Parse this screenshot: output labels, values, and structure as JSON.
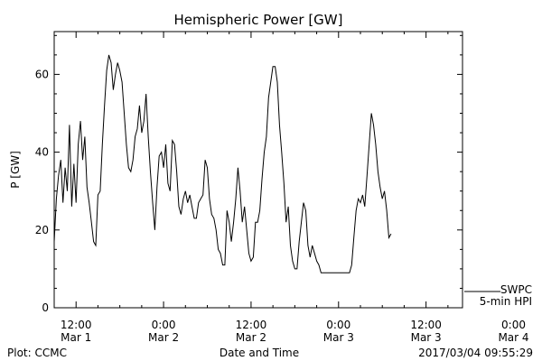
{
  "chart_data": {
    "type": "line",
    "title": "Hemispheric Power [GW]",
    "xlabel": "Date and Time",
    "ylabel": "P [GW]",
    "ylim": [
      0,
      71
    ],
    "yticks": [
      0,
      20,
      40,
      60
    ],
    "xlim_hours": [
      -15,
      41
    ],
    "x_tick_labels": [
      {
        "hours": -12,
        "time": "12:00",
        "date": "Mar 1"
      },
      {
        "hours": 0,
        "time": "0:00",
        "date": "Mar 2"
      },
      {
        "hours": 12,
        "time": "12:00",
        "date": "Mar 2"
      },
      {
        "hours": 24,
        "time": "0:00",
        "date": "Mar 3"
      },
      {
        "hours": 36,
        "time": "12:00",
        "date": "Mar 3"
      },
      {
        "hours": 48,
        "time": "0:00",
        "date": "Mar 4"
      }
    ],
    "series": [
      {
        "name": "5-min HPI",
        "points": [
          [
            -15.0,
            17
          ],
          [
            -14.7,
            28
          ],
          [
            -14.4,
            34
          ],
          [
            -14.1,
            38
          ],
          [
            -13.8,
            27
          ],
          [
            -13.5,
            36
          ],
          [
            -13.2,
            30
          ],
          [
            -12.9,
            47
          ],
          [
            -12.6,
            26
          ],
          [
            -12.3,
            37
          ],
          [
            -12.0,
            27
          ],
          [
            -11.7,
            42
          ],
          [
            -11.4,
            48
          ],
          [
            -11.1,
            38
          ],
          [
            -10.8,
            44
          ],
          [
            -10.5,
            31
          ],
          [
            -10.2,
            27
          ],
          [
            -9.9,
            22
          ],
          [
            -9.6,
            17
          ],
          [
            -9.3,
            16
          ],
          [
            -9.0,
            29
          ],
          [
            -8.7,
            30
          ],
          [
            -8.4,
            42
          ],
          [
            -8.1,
            52
          ],
          [
            -7.8,
            61
          ],
          [
            -7.5,
            65
          ],
          [
            -7.2,
            63
          ],
          [
            -6.9,
            56
          ],
          [
            -6.6,
            60
          ],
          [
            -6.3,
            63
          ],
          [
            -6.0,
            61
          ],
          [
            -5.7,
            58
          ],
          [
            -5.4,
            50
          ],
          [
            -5.1,
            42
          ],
          [
            -4.8,
            36
          ],
          [
            -4.5,
            35
          ],
          [
            -4.2,
            38
          ],
          [
            -3.9,
            44
          ],
          [
            -3.6,
            46
          ],
          [
            -3.3,
            52
          ],
          [
            -3.0,
            45
          ],
          [
            -2.7,
            48
          ],
          [
            -2.4,
            55
          ],
          [
            -2.1,
            44
          ],
          [
            -1.8,
            35
          ],
          [
            -1.5,
            27
          ],
          [
            -1.2,
            20
          ],
          [
            -0.9,
            31
          ],
          [
            -0.6,
            39
          ],
          [
            -0.3,
            40
          ],
          [
            0.0,
            36
          ],
          [
            0.3,
            42
          ],
          [
            0.6,
            32
          ],
          [
            0.9,
            30
          ],
          [
            1.2,
            43
          ],
          [
            1.5,
            42
          ],
          [
            1.8,
            35
          ],
          [
            2.1,
            26
          ],
          [
            2.4,
            24
          ],
          [
            2.7,
            28
          ],
          [
            3.0,
            30
          ],
          [
            3.3,
            27
          ],
          [
            3.6,
            29
          ],
          [
            3.9,
            26
          ],
          [
            4.2,
            23
          ],
          [
            4.5,
            23
          ],
          [
            4.8,
            27
          ],
          [
            5.1,
            28
          ],
          [
            5.4,
            29
          ],
          [
            5.7,
            38
          ],
          [
            6.0,
            36
          ],
          [
            6.3,
            28
          ],
          [
            6.6,
            24
          ],
          [
            6.9,
            23
          ],
          [
            7.2,
            20
          ],
          [
            7.5,
            15
          ],
          [
            7.8,
            14
          ],
          [
            8.1,
            11
          ],
          [
            8.4,
            11
          ],
          [
            8.7,
            25
          ],
          [
            9.0,
            22
          ],
          [
            9.3,
            17
          ],
          [
            9.6,
            22
          ],
          [
            9.9,
            28
          ],
          [
            10.2,
            36
          ],
          [
            10.5,
            30
          ],
          [
            10.8,
            22
          ],
          [
            11.1,
            26
          ],
          [
            11.4,
            20
          ],
          [
            11.7,
            14
          ],
          [
            12.0,
            12
          ],
          [
            12.3,
            13
          ],
          [
            12.6,
            22
          ],
          [
            12.9,
            22
          ],
          [
            13.2,
            25
          ],
          [
            13.5,
            33
          ],
          [
            13.8,
            40
          ],
          [
            14.1,
            44
          ],
          [
            14.4,
            54
          ],
          [
            14.7,
            58
          ],
          [
            15.0,
            62
          ],
          [
            15.3,
            62
          ],
          [
            15.6,
            58
          ],
          [
            15.9,
            47
          ],
          [
            16.2,
            40
          ],
          [
            16.5,
            32
          ],
          [
            16.8,
            22
          ],
          [
            17.1,
            26
          ],
          [
            17.4,
            16
          ],
          [
            17.7,
            12
          ],
          [
            18.0,
            10
          ],
          [
            18.3,
            10
          ],
          [
            18.6,
            17
          ],
          [
            18.9,
            22
          ],
          [
            19.2,
            27
          ],
          [
            19.5,
            25
          ],
          [
            19.8,
            16
          ],
          [
            20.1,
            13
          ],
          [
            20.4,
            16
          ],
          [
            20.7,
            14
          ],
          [
            21.0,
            12
          ],
          [
            21.3,
            11
          ],
          [
            21.6,
            9
          ],
          [
            22.0,
            9
          ],
          [
            23.0,
            9
          ],
          [
            24.0,
            9
          ],
          [
            25.0,
            9
          ],
          [
            25.5,
            9
          ],
          [
            25.8,
            11
          ],
          [
            26.1,
            18
          ],
          [
            26.4,
            25
          ],
          [
            26.7,
            28
          ],
          [
            27.0,
            27
          ],
          [
            27.3,
            29
          ],
          [
            27.6,
            26
          ],
          [
            27.9,
            34
          ],
          [
            28.2,
            42
          ],
          [
            28.5,
            50
          ],
          [
            28.8,
            47
          ],
          [
            29.1,
            42
          ],
          [
            29.4,
            35
          ],
          [
            29.7,
            31
          ],
          [
            30.0,
            28
          ],
          [
            30.3,
            30
          ],
          [
            30.6,
            25
          ],
          [
            30.9,
            18
          ],
          [
            31.2,
            19
          ]
        ]
      }
    ]
  },
  "legend": {
    "line1": "SWPC",
    "line2": "5-min HPI"
  },
  "footer": {
    "left": "Plot: CCMC",
    "right": "2017/03/04 09:55:29"
  }
}
